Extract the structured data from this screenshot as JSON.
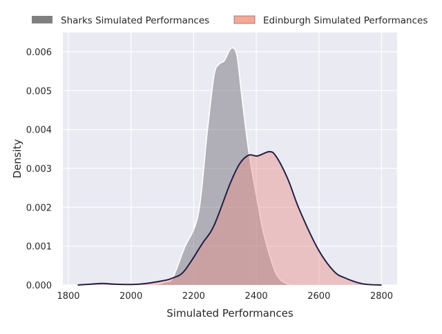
{
  "chart_data": {
    "type": "area",
    "title": "",
    "xlabel": "Simulated Performances",
    "ylabel": "Density",
    "xlim": [
      1780,
      2850
    ],
    "ylim": [
      0,
      0.00648
    ],
    "xticks": [
      1800,
      2000,
      2200,
      2400,
      2600,
      2800
    ],
    "xtick_labels": [
      "1800",
      "2000",
      "2200",
      "2400",
      "2600",
      "2800"
    ],
    "yticks": [
      0,
      0.001,
      0.002,
      0.003,
      0.004,
      0.005,
      0.006
    ],
    "ytick_labels": [
      "0.000",
      "0.001",
      "0.002",
      "0.003",
      "0.004",
      "0.005",
      "0.006"
    ],
    "grid": true,
    "legend_placement": "top-center-outside",
    "series": [
      {
        "name": "Sharks Simulated Performances",
        "fill": "#5f5e6a",
        "line": "#ffffff",
        "legend_color": "#808080",
        "x": [
          2060,
          2090,
          2110,
          2133,
          2170,
          2215,
          2243,
          2265,
          2281,
          2298,
          2320,
          2338,
          2353,
          2376,
          2404,
          2426,
          2464,
          2502,
          2530
        ],
        "y": [
          0,
          3e-05,
          8e-05,
          0.00018,
          0.00094,
          0.00183,
          0.0039,
          0.00538,
          0.00568,
          0.00577,
          0.00609,
          0.00591,
          0.0049,
          0.00343,
          0.00213,
          0.00124,
          0.00028,
          2e-05,
          0
        ]
      },
      {
        "name": "Edinburgh Simulated Performances",
        "fill": "#e8908a",
        "line": "#231d45",
        "legend_color": "#f4a896",
        "x": [
          1830,
          1870,
          1910,
          1950,
          2023,
          2095,
          2133,
          2170,
          2228,
          2265,
          2316,
          2347,
          2376,
          2404,
          2442,
          2464,
          2501,
          2537,
          2596,
          2647,
          2684,
          2740,
          2800
        ],
        "y": [
          0,
          2e-05,
          4e-05,
          2e-05,
          2e-05,
          0.0001,
          0.00018,
          0.00036,
          0.00107,
          0.00153,
          0.0026,
          0.00312,
          0.00334,
          0.00332,
          0.00343,
          0.0033,
          0.00272,
          0.00195,
          0.00094,
          0.00036,
          0.00018,
          3e-05,
          0
        ]
      }
    ]
  }
}
